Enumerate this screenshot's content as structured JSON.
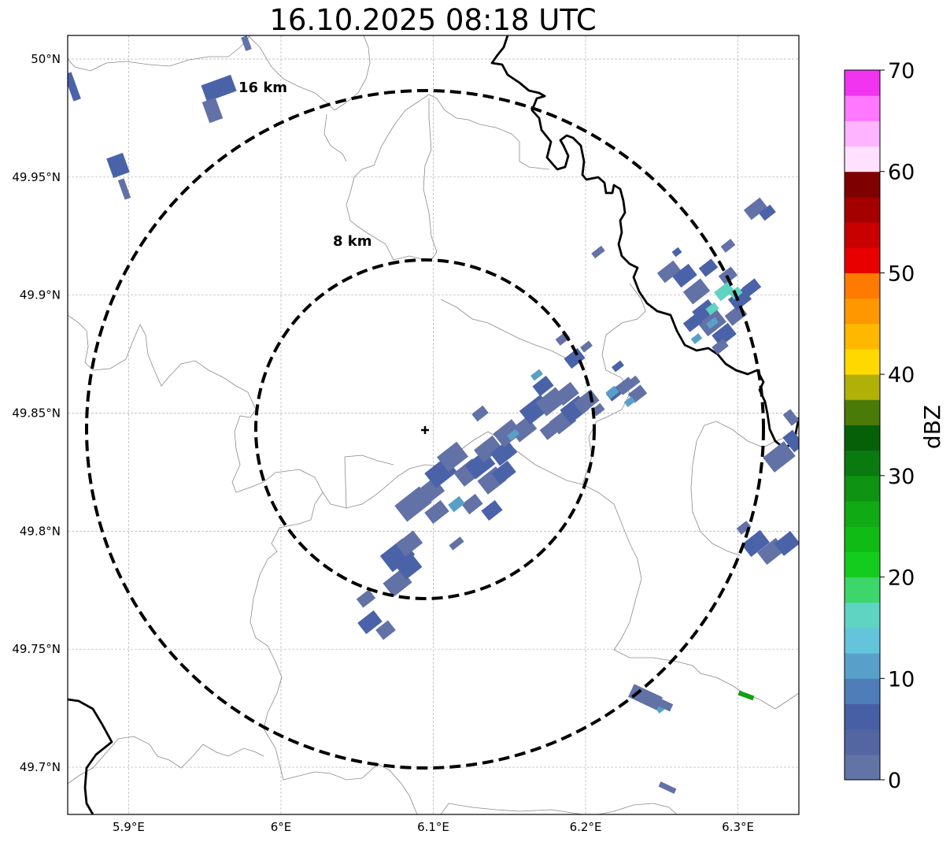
{
  "title": "16.10.2025 08:18 UTC",
  "map": {
    "lon_range": [
      5.86,
      6.34
    ],
    "lat_range": [
      49.68,
      50.01
    ],
    "x_ticks": [
      5.9,
      6.0,
      6.1,
      6.2,
      6.3
    ],
    "x_tick_labels": [
      "5.9°E",
      "6°E",
      "6.1°E",
      "6.2°E",
      "6.3°E"
    ],
    "y_ticks": [
      49.7,
      49.75,
      49.8,
      49.85,
      49.9,
      49.95,
      50.0
    ],
    "y_tick_labels": [
      "49.7°N",
      "49.75°N",
      "49.8°N",
      "49.85°N",
      "49.9°N",
      "49.95°N",
      "50°N"
    ],
    "grid": true,
    "radar_site": {
      "lon": 6.096,
      "lat": 49.843
    },
    "range_rings": [
      {
        "label": "8 km",
        "radius_km": 8
      },
      {
        "label": "16 km",
        "radius_km": 16
      }
    ],
    "echo_colors": {
      "weak": "#6272a6",
      "moderate": "#4a62a8",
      "light_blue": "#58a0c8",
      "cyan": "#60d2c0",
      "green": "#10a010"
    }
  },
  "colorbar": {
    "label": "dBZ",
    "min": 0,
    "max": 70,
    "tick_labels": [
      "0",
      "10",
      "20",
      "30",
      "40",
      "50",
      "60",
      "70"
    ],
    "colors": [
      "#6273a6",
      "#5366a2",
      "#4760a5",
      "#4f7db8",
      "#58a0c9",
      "#64c4dc",
      "#60d4c2",
      "#3cd66a",
      "#14cc1e",
      "#10bb16",
      "#10aa14",
      "#0e9312",
      "#0a7a10",
      "#066008",
      "#4a7a08",
      "#b0b008",
      "#ffd800",
      "#ffb800",
      "#ff9800",
      "#ff7a00",
      "#e80000",
      "#c80000",
      "#a40000",
      "#7e0000",
      "#ffe0ff",
      "#ffb4ff",
      "#ff78ff",
      "#f034f0"
    ]
  }
}
